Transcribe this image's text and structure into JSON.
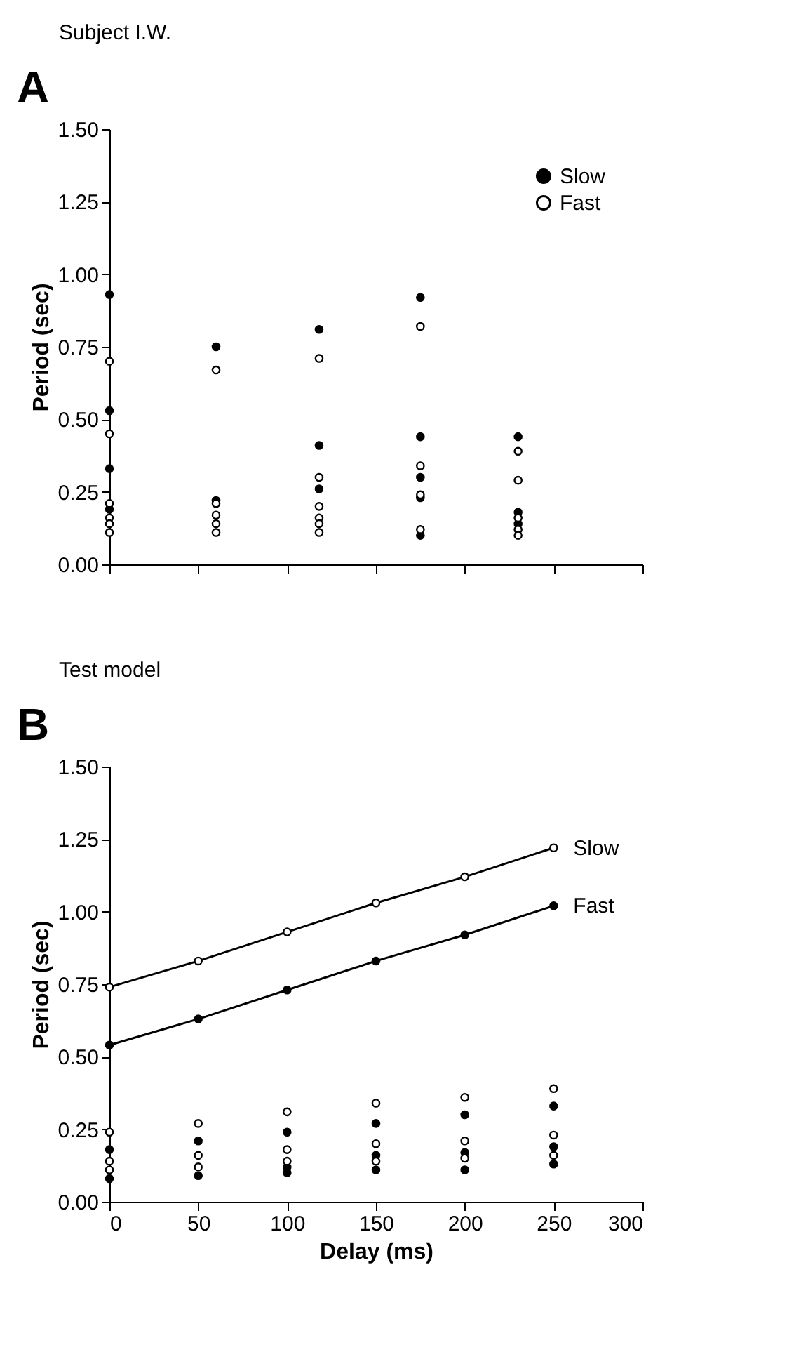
{
  "chart_data": [
    {
      "type": "scatter",
      "title": "Subject I.W.",
      "ylabel": "Period (sec)",
      "annotations": [
        "A"
      ],
      "xlim": [
        0,
        300
      ],
      "xticks": [
        {
          "value": 0,
          "label": null
        },
        {
          "value": 50,
          "label": null
        },
        {
          "value": 100,
          "label": null
        },
        {
          "value": 150,
          "label": null
        },
        {
          "value": 200,
          "label": null
        },
        {
          "value": 250,
          "label": null
        },
        {
          "value": 300,
          "label": null
        }
      ],
      "ylim": [
        0,
        1.5
      ],
      "yticks": [
        {
          "value": 0,
          "label": "0.00"
        },
        {
          "value": 0.25,
          "label": "0.25"
        },
        {
          "value": 0.5,
          "label": "0.50"
        },
        {
          "value": 0.75,
          "label": "0.75"
        },
        {
          "value": 1,
          "label": "1.00"
        },
        {
          "value": 1.25,
          "label": "1.25"
        },
        {
          "value": 1.5,
          "label": "1.50"
        }
      ],
      "tick_labels": "y",
      "grid": false,
      "legend": "top right",
      "marker": "circle",
      "series": [
        {
          "name": "Slow",
          "color": "#000000",
          "x": [
            0,
            0,
            0,
            0,
            60,
            60,
            118,
            118,
            118,
            175,
            175,
            175,
            175,
            175,
            230,
            230,
            230
          ],
          "values": [
            0.93,
            0.53,
            0.33,
            0.19,
            0.75,
            0.22,
            0.81,
            0.41,
            0.26,
            0.92,
            0.44,
            0.3,
            0.23,
            0.1,
            0.44,
            0.18,
            0.14
          ]
        },
        {
          "name": "Fast",
          "color": "#ffffff",
          "x": [
            0,
            0,
            0,
            0,
            0,
            0,
            60,
            60,
            60,
            60,
            60,
            118,
            118,
            118,
            118,
            118,
            118,
            175,
            175,
            175,
            175,
            230,
            230,
            230,
            230,
            230
          ],
          "values": [
            0.7,
            0.45,
            0.21,
            0.16,
            0.14,
            0.11,
            0.67,
            0.21,
            0.17,
            0.14,
            0.11,
            0.71,
            0.3,
            0.2,
            0.16,
            0.14,
            0.11,
            0.82,
            0.34,
            0.24,
            0.12,
            0.39,
            0.29,
            0.16,
            0.12,
            0.1
          ]
        }
      ]
    },
    {
      "type": "scatter",
      "title": "Test model",
      "xlabel": "Delay (ms)",
      "ylabel": "Period (sec)",
      "annotations": [
        "B"
      ],
      "xlim": [
        0,
        300
      ],
      "xticks": [
        0,
        50,
        100,
        150,
        200,
        250,
        300
      ],
      "ylim": [
        0,
        1.5
      ],
      "yticks": [
        {
          "value": 0,
          "label": "0.00"
        },
        {
          "value": 0.25,
          "label": "0.25"
        },
        {
          "value": 0.5,
          "label": "0.50"
        },
        {
          "value": 0.75,
          "label": "0.75"
        },
        {
          "value": 1,
          "label": "1.00"
        },
        {
          "value": 1.25,
          "label": "1.25"
        },
        {
          "value": 1.5,
          "label": "1.50"
        }
      ],
      "grid": false,
      "legend": false,
      "marker": "circle",
      "line_style": "solid",
      "series": [
        {
          "name": "Slow",
          "type": "line",
          "color": "#ffffff",
          "x": [
            0,
            50,
            100,
            150,
            200,
            250
          ],
          "values": [
            0.74,
            0.83,
            0.93,
            1.03,
            1.12,
            1.22
          ]
        },
        {
          "name": "Fast",
          "type": "line",
          "color": "#000000",
          "x": [
            0,
            50,
            100,
            150,
            200,
            250
          ],
          "values": [
            0.54,
            0.63,
            0.73,
            0.83,
            0.92,
            1.02
          ]
        },
        {
          "color": "#000000",
          "x": [
            0,
            0,
            50,
            50,
            100,
            100,
            100,
            150,
            150,
            150,
            200,
            200,
            200,
            250,
            250,
            250
          ],
          "values": [
            0.18,
            0.08,
            0.21,
            0.09,
            0.24,
            0.12,
            0.1,
            0.27,
            0.16,
            0.11,
            0.3,
            0.17,
            0.11,
            0.33,
            0.19,
            0.13
          ]
        },
        {
          "color": "#ffffff",
          "x": [
            0,
            0,
            0,
            50,
            50,
            50,
            100,
            100,
            100,
            150,
            150,
            150,
            200,
            200,
            200,
            250,
            250,
            250
          ],
          "values": [
            0.24,
            0.14,
            0.11,
            0.27,
            0.16,
            0.12,
            0.31,
            0.18,
            0.14,
            0.34,
            0.2,
            0.14,
            0.36,
            0.21,
            0.15,
            0.39,
            0.23,
            0.16
          ]
        }
      ]
    }
  ]
}
